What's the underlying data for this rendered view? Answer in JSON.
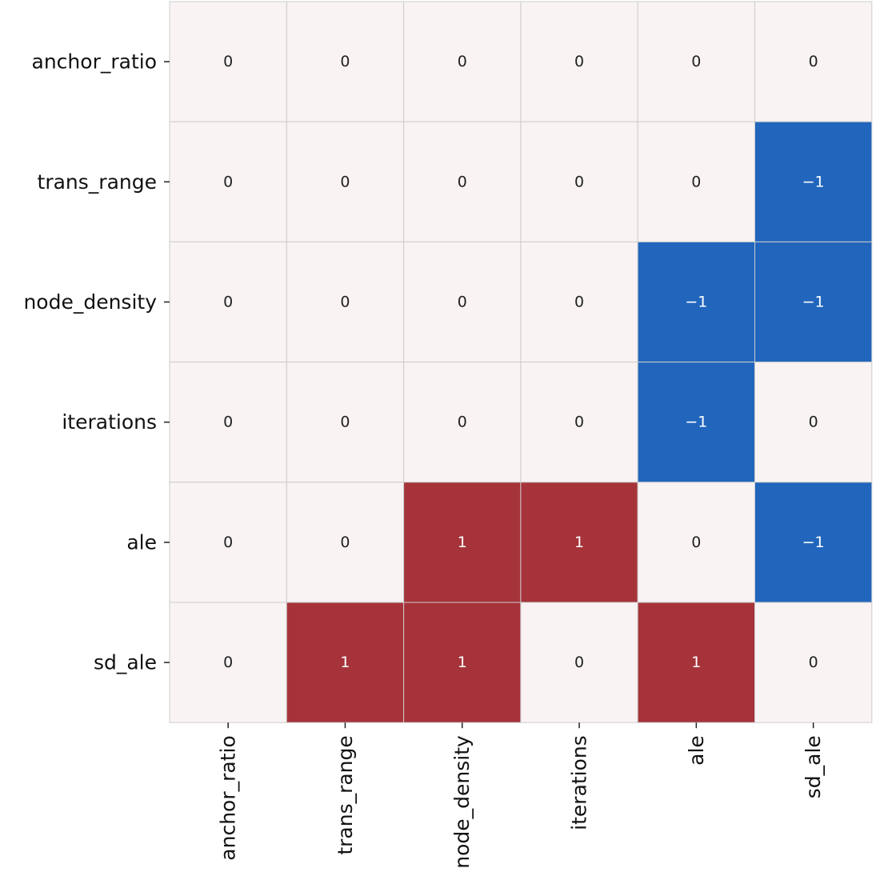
{
  "chart_data": {
    "type": "heatmap",
    "title": "",
    "xlabel": "",
    "ylabel": "",
    "row_labels": [
      "anchor_ratio",
      "trans_range",
      "node_density",
      "iterations",
      "ale",
      "sd_ale"
    ],
    "col_labels": [
      "anchor_ratio",
      "trans_range",
      "node_density",
      "iterations",
      "ale",
      "sd_ale"
    ],
    "values": [
      [
        0,
        0,
        0,
        0,
        0,
        0
      ],
      [
        0,
        0,
        0,
        0,
        0,
        -1
      ],
      [
        0,
        0,
        0,
        0,
        -1,
        -1
      ],
      [
        0,
        0,
        0,
        0,
        -1,
        0
      ],
      [
        0,
        0,
        1,
        1,
        0,
        -1
      ],
      [
        0,
        1,
        1,
        0,
        1,
        0
      ]
    ],
    "value_range": [
      -1,
      1
    ],
    "colormap": {
      "-1": "#2166bc",
      "0": "#f9f3f3",
      "1": "#a6333a"
    },
    "text_colors": {
      "dark_cell": "#ffffff",
      "light_cell": "#222222"
    },
    "grid_color": "#cccccc",
    "colorbar": false
  }
}
